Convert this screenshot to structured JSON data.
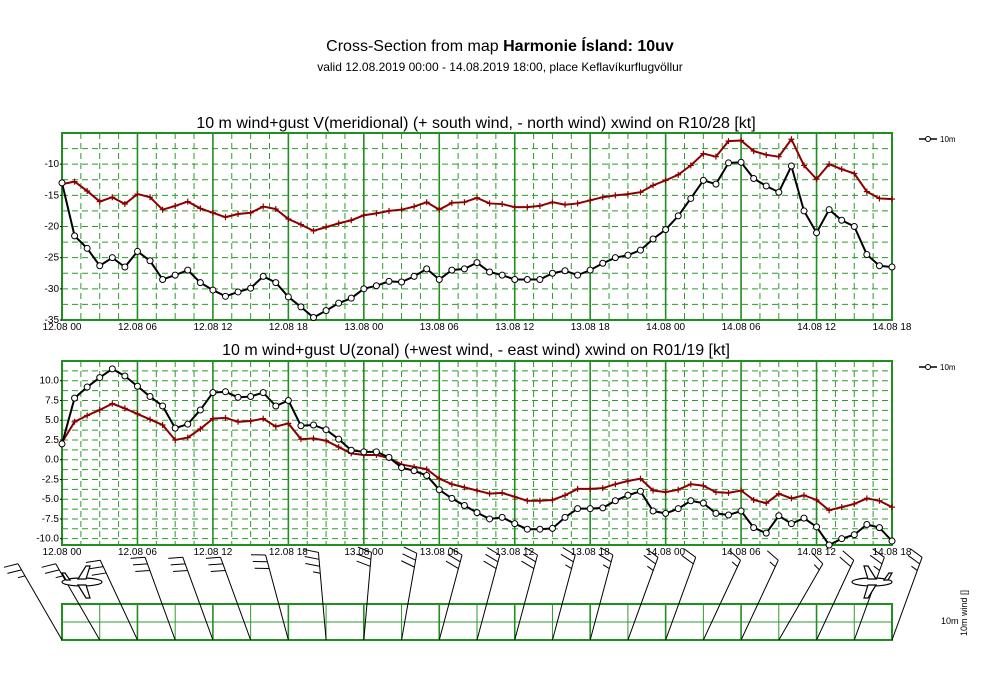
{
  "header": {
    "prefix": "Cross-Section from map ",
    "model": "Harmonie Ísland: 10uv",
    "subtitle": "valid 12.08.2019 00:00 - 14.08.2019 18:00, place Keflavíkurflugvöllur"
  },
  "colors": {
    "frame": "#1f8f1f",
    "grid": "#2e9a2e",
    "series": "#000000",
    "gust": "#8b0000",
    "barb": "#000000"
  },
  "icons": {
    "left": "airplane-icon",
    "right": "airplane-icon"
  },
  "bottom_panel": {
    "label_top": "10m",
    "label_side": "10m wind []"
  },
  "chart_data": [
    {
      "type": "line",
      "title": "10 m wind+gust V(meridional) (+ south wind, - north wind) xwind on R10/28 [kt]",
      "x_ticks": [
        "12.08 00",
        "12.08 06",
        "12.08 12",
        "12.08 18",
        "13.08 00",
        "13.08 06",
        "13.08 12",
        "13.08 18",
        "14.08 00",
        "14.08 06",
        "14.08 12",
        "14.08 18"
      ],
      "x_range_hours": [
        0,
        66
      ],
      "ylim": [
        -35,
        -5
      ],
      "y_ticks": [
        -35,
        -30,
        -25,
        -20,
        -15,
        -10
      ],
      "y_tick_labels": [
        "-35",
        "-30",
        "-25",
        "-20",
        "-15",
        "-10"
      ],
      "grid": true,
      "legend": {
        "position": "top-right",
        "entries": [
          "10m"
        ]
      },
      "series": [
        {
          "name": "10m",
          "color": "#000000",
          "marker": "circle",
          "x": [
            0,
            1,
            2,
            3,
            4,
            5,
            6,
            7,
            8,
            9,
            10,
            11,
            12,
            13,
            14,
            15,
            16,
            17,
            18,
            19,
            20,
            21,
            22,
            23,
            24,
            25,
            26,
            27,
            28,
            29,
            30,
            31,
            32,
            33,
            34,
            35,
            36,
            37,
            38,
            39,
            40,
            41,
            42,
            43,
            44,
            45,
            46,
            47,
            48,
            49,
            50,
            51,
            52,
            53,
            54,
            55,
            56,
            57,
            58,
            59,
            60,
            61,
            62,
            63,
            64,
            65,
            66
          ],
          "values": [
            -13,
            -21.5,
            -23.5,
            -26.3,
            -25,
            -26.5,
            -24,
            -25.5,
            -28.5,
            -27.8,
            -27,
            -29,
            -30.2,
            -31.2,
            -30.5,
            -29.9,
            -28,
            -29,
            -31.3,
            -32.9,
            -34.6,
            -33.5,
            -32.3,
            -31.5,
            -30,
            -29.5,
            -28.8,
            -28.9,
            -28,
            -26.8,
            -28.5,
            -27,
            -26.8,
            -25.8,
            -27.3,
            -27.8,
            -28.5,
            -28.5,
            -28.5,
            -27.5,
            -27.1,
            -27.8,
            -27,
            -25.9,
            -25,
            -24.6,
            -23.8,
            -22,
            -20.5,
            -18.3,
            -15.5,
            -12.6,
            -13.2,
            -9.8,
            -9.7,
            -12.3,
            -13.5,
            -14.5,
            -10.3,
            -17.5,
            -21,
            -17.3,
            -19,
            -20,
            -24.5,
            -26.3,
            -26.5
          ]
        },
        {
          "name": "",
          "color": "#8b0000",
          "marker": "plus",
          "x": [
            0,
            1,
            2,
            3,
            4,
            5,
            6,
            7,
            8,
            9,
            10,
            11,
            12,
            13,
            14,
            15,
            16,
            17,
            18,
            19,
            20,
            21,
            22,
            23,
            24,
            25,
            26,
            27,
            28,
            29,
            30,
            31,
            32,
            33,
            34,
            35,
            36,
            37,
            38,
            39,
            40,
            41,
            42,
            43,
            44,
            45,
            46,
            47,
            48,
            49,
            50,
            51,
            52,
            53,
            54,
            55,
            56,
            57,
            58,
            59,
            60,
            61,
            62,
            63,
            64,
            65,
            66
          ],
          "values": [
            -13.2,
            -12.8,
            -14.3,
            -16,
            -15.3,
            -16.4,
            -14.8,
            -15.3,
            -17.3,
            -16.7,
            -16,
            -17.1,
            -17.8,
            -18.5,
            -18,
            -17.8,
            -16.8,
            -17.2,
            -18.8,
            -19.7,
            -20.7,
            -20.1,
            -19.5,
            -19,
            -18.2,
            -17.9,
            -17.5,
            -17.3,
            -16.8,
            -16.1,
            -17.3,
            -16.2,
            -16.1,
            -15.4,
            -16.3,
            -16.4,
            -16.9,
            -16.9,
            -16.7,
            -16.1,
            -16.5,
            -16.3,
            -15.8,
            -15.3,
            -15,
            -14.8,
            -14.5,
            -13.4,
            -12.6,
            -11.7,
            -10.2,
            -8.3,
            -8.8,
            -6.3,
            -6.2,
            -7.9,
            -8.5,
            -8.8,
            -6,
            -10.2,
            -12.4,
            -10,
            -10.8,
            -11.5,
            -14.4,
            -15.5,
            -15.6
          ]
        }
      ]
    },
    {
      "type": "line",
      "title": "10 m wind+gust U(zonal) (+west wind, - east wind) xwind on R01/19 [kt]",
      "x_ticks": [
        "12.08 00",
        "12.08 06",
        "12.08 12",
        "12.08 18",
        "13.08 00",
        "13.08 06",
        "13.08 12",
        "13.08 18",
        "14.08 00",
        "14.08 06",
        "14.08 12",
        "14.08 18"
      ],
      "x_range_hours": [
        0,
        66
      ],
      "ylim": [
        -10.8,
        12.5
      ],
      "y_ticks": [
        -10,
        -7.5,
        -5,
        -2.5,
        0,
        2.5,
        5,
        7.5,
        10
      ],
      "y_tick_labels": [
        "-10.0",
        "-7.5",
        "-5.0",
        "-2.5",
        "0.0",
        "2.5",
        "5.0",
        "7.5",
        "10.0"
      ],
      "grid": true,
      "legend": {
        "position": "top-right",
        "entries": [
          "10m"
        ]
      },
      "series": [
        {
          "name": "10m",
          "color": "#000000",
          "marker": "circle",
          "x": [
            0,
            1,
            2,
            3,
            4,
            5,
            6,
            7,
            8,
            9,
            10,
            11,
            12,
            13,
            14,
            15,
            16,
            17,
            18,
            19,
            20,
            21,
            22,
            23,
            24,
            25,
            26,
            27,
            28,
            29,
            30,
            31,
            32,
            33,
            34,
            35,
            36,
            37,
            38,
            39,
            40,
            41,
            42,
            43,
            44,
            45,
            46,
            47,
            48,
            49,
            50,
            51,
            52,
            53,
            54,
            55,
            56,
            57,
            58,
            59,
            60,
            61,
            62,
            63,
            64,
            65,
            66
          ],
          "values": [
            2,
            7.8,
            9.2,
            10.4,
            11.5,
            10.6,
            9.3,
            8,
            6.8,
            4,
            4.5,
            6.3,
            8.5,
            8.6,
            7.9,
            8,
            8.5,
            6.8,
            7.5,
            4.3,
            4.4,
            3.8,
            2.6,
            1.2,
            1,
            1,
            0.3,
            -1,
            -1.4,
            -2,
            -3.8,
            -4.9,
            -5.8,
            -6.7,
            -7.5,
            -7.3,
            -8.1,
            -8.8,
            -8.8,
            -8.7,
            -7.3,
            -6.2,
            -6.2,
            -6.1,
            -5.2,
            -4.5,
            -4,
            -6.5,
            -6.8,
            -6.2,
            -5.2,
            -5.5,
            -6.8,
            -7,
            -6.5,
            -8.6,
            -9.3,
            -7.1,
            -8.1,
            -7.4,
            -8.5,
            -10.8,
            -10,
            -9.5,
            -8.2,
            -8.6,
            -10.3
          ]
        },
        {
          "name": "",
          "color": "#8b0000",
          "marker": "plus",
          "x": [
            0,
            1,
            2,
            3,
            4,
            5,
            6,
            7,
            8,
            9,
            10,
            11,
            12,
            13,
            14,
            15,
            16,
            17,
            18,
            19,
            20,
            21,
            22,
            23,
            24,
            25,
            26,
            27,
            28,
            29,
            30,
            31,
            32,
            33,
            34,
            35,
            36,
            37,
            38,
            39,
            40,
            41,
            42,
            43,
            44,
            45,
            46,
            47,
            48,
            49,
            50,
            51,
            52,
            53,
            54,
            55,
            56,
            57,
            58,
            59,
            60,
            61,
            62,
            63,
            64,
            65,
            66
          ],
          "values": [
            2.2,
            4.8,
            5.6,
            6.3,
            7.1,
            6.5,
            5.8,
            5.1,
            4.4,
            2.5,
            2.8,
            3.9,
            5.2,
            5.3,
            4.8,
            4.9,
            5.2,
            4.2,
            4.6,
            2.6,
            2.7,
            2.4,
            1.6,
            0.8,
            0.6,
            0.6,
            0.2,
            -0.6,
            -0.9,
            -1.2,
            -2.4,
            -3.1,
            -3.5,
            -3.9,
            -4.3,
            -4.2,
            -4.7,
            -5.2,
            -5.2,
            -5.1,
            -4.5,
            -3.7,
            -3.7,
            -3.6,
            -3.1,
            -2.7,
            -2.4,
            -3.9,
            -4.1,
            -3.8,
            -3.1,
            -3.3,
            -4.1,
            -4.2,
            -3.9,
            -5.1,
            -5.5,
            -4.3,
            -4.9,
            -4.5,
            -5.1,
            -6.4,
            -6,
            -5.6,
            -4.9,
            -5.2,
            -6
          ]
        }
      ]
    },
    {
      "type": "table",
      "title": "",
      "barbs": [
        {
          "t": 0,
          "speed": 25,
          "dir": 330
        },
        {
          "t": 3,
          "speed": 25,
          "dir": 330
        },
        {
          "t": 6,
          "speed": 30,
          "dir": 335
        },
        {
          "t": 9,
          "speed": 30,
          "dir": 340
        },
        {
          "t": 12,
          "speed": 30,
          "dir": 340
        },
        {
          "t": 15,
          "speed": 30,
          "dir": 340
        },
        {
          "t": 18,
          "speed": 30,
          "dir": 345
        },
        {
          "t": 21,
          "speed": 35,
          "dir": 355
        },
        {
          "t": 24,
          "speed": 30,
          "dir": 5
        },
        {
          "t": 27,
          "speed": 30,
          "dir": 10
        },
        {
          "t": 30,
          "speed": 30,
          "dir": 15
        },
        {
          "t": 33,
          "speed": 30,
          "dir": 15
        },
        {
          "t": 36,
          "speed": 30,
          "dir": 15
        },
        {
          "t": 39,
          "speed": 25,
          "dir": 15
        },
        {
          "t": 42,
          "speed": 25,
          "dir": 15
        },
        {
          "t": 45,
          "speed": 25,
          "dir": 20
        },
        {
          "t": 48,
          "speed": 20,
          "dir": 20
        },
        {
          "t": 51,
          "speed": 15,
          "dir": 25
        },
        {
          "t": 54,
          "speed": 15,
          "dir": 25
        },
        {
          "t": 57,
          "speed": 15,
          "dir": 30
        },
        {
          "t": 60,
          "speed": 20,
          "dir": 25
        },
        {
          "t": 63,
          "speed": 25,
          "dir": 20
        },
        {
          "t": 66,
          "speed": 25,
          "dir": 20
        }
      ]
    }
  ]
}
